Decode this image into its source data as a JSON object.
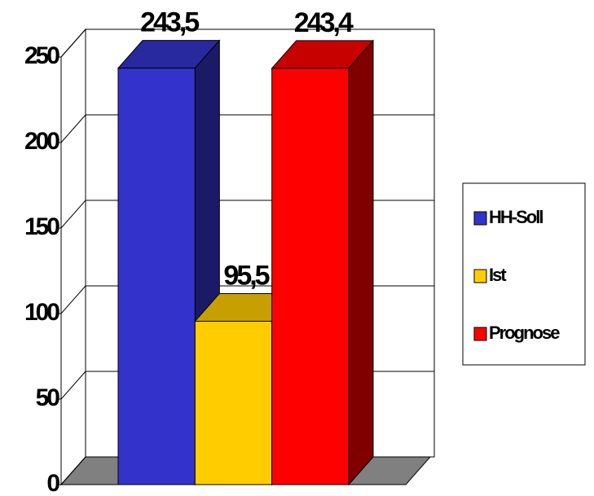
{
  "chart_data": {
    "type": "bar3d",
    "series": [
      {
        "name": "HH-Soll",
        "color": "#3333cc",
        "values": [
          243.5
        ],
        "value_labels": [
          "243,5"
        ]
      },
      {
        "name": "Ist",
        "color": "#ffcc00",
        "values": [
          95.5
        ],
        "value_labels": [
          "95,5"
        ]
      },
      {
        "name": "Prognose",
        "color": "#ff0000",
        "values": [
          243.4
        ],
        "value_labels": [
          "243,4"
        ]
      }
    ],
    "ylim": [
      0,
      250
    ],
    "yticks": [
      0,
      50,
      100,
      150,
      200,
      250
    ],
    "grid": true,
    "legend": "right"
  }
}
